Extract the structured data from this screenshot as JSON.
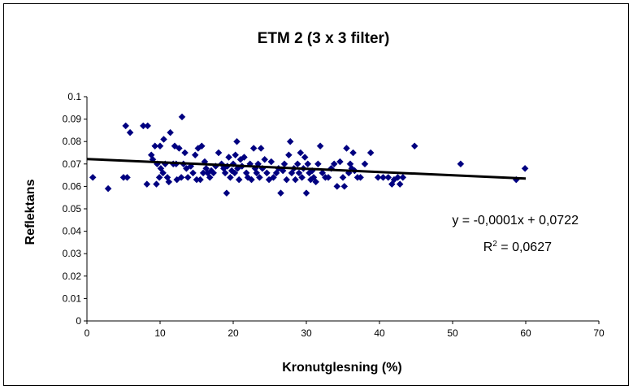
{
  "chart_data": {
    "type": "scatter",
    "title": "ETM 2 (3 x 3 filter)",
    "xlabel": "Kronutglesning (%)",
    "ylabel": "Reflektans",
    "xlim": [
      0,
      70
    ],
    "ylim": [
      0,
      0.1
    ],
    "x_ticks": [
      "0",
      "10",
      "20",
      "30",
      "40",
      "50",
      "60",
      "70"
    ],
    "y_ticks": [
      "0",
      "0.01",
      "0.02",
      "0.03",
      "0.04",
      "0.05",
      "0.06",
      "0.07",
      "0.08",
      "0.09",
      "0.1"
    ],
    "grid": false,
    "legend": "none",
    "marker_color": "#000080",
    "trendline": {
      "equation": "y = -0,0001x + 0,0722",
      "r2_prefix": "R",
      "r2_sup": "2",
      "r2_value": " = 0,0627",
      "x_range": [
        0,
        60
      ],
      "y_start": 0.0722,
      "y_end": 0.0635,
      "color": "#000000"
    },
    "points": [
      [
        0.8,
        0.064
      ],
      [
        2.9,
        0.059
      ],
      [
        5.0,
        0.064
      ],
      [
        5.3,
        0.087
      ],
      [
        5.5,
        0.064
      ],
      [
        5.9,
        0.084
      ],
      [
        7.7,
        0.087
      ],
      [
        8.3,
        0.087
      ],
      [
        8.2,
        0.061
      ],
      [
        8.8,
        0.074
      ],
      [
        9.0,
        0.072
      ],
      [
        9.3,
        0.078
      ],
      [
        9.6,
        0.07
      ],
      [
        9.9,
        0.064
      ],
      [
        9.5,
        0.061
      ],
      [
        10.0,
        0.078
      ],
      [
        10.5,
        0.081
      ],
      [
        10.1,
        0.068
      ],
      [
        10.4,
        0.066
      ],
      [
        10.7,
        0.07
      ],
      [
        11.0,
        0.064
      ],
      [
        11.4,
        0.084
      ],
      [
        11.2,
        0.062
      ],
      [
        11.8,
        0.07
      ],
      [
        12.0,
        0.078
      ],
      [
        12.3,
        0.063
      ],
      [
        12.2,
        0.07
      ],
      [
        12.6,
        0.077
      ],
      [
        12.9,
        0.064
      ],
      [
        13.0,
        0.091
      ],
      [
        13.2,
        0.07
      ],
      [
        13.4,
        0.075
      ],
      [
        13.6,
        0.068
      ],
      [
        13.8,
        0.064
      ],
      [
        14.2,
        0.069
      ],
      [
        14.5,
        0.066
      ],
      [
        14.8,
        0.074
      ],
      [
        15.0,
        0.063
      ],
      [
        15.2,
        0.077
      ],
      [
        15.5,
        0.063
      ],
      [
        15.7,
        0.078
      ],
      [
        15.9,
        0.066
      ],
      [
        16.1,
        0.071
      ],
      [
        16.3,
        0.068
      ],
      [
        16.5,
        0.066
      ],
      [
        16.8,
        0.064
      ],
      [
        17.0,
        0.067
      ],
      [
        17.3,
        0.066
      ],
      [
        17.6,
        0.069
      ],
      [
        18.0,
        0.075
      ],
      [
        18.4,
        0.07
      ],
      [
        18.7,
        0.068
      ],
      [
        18.9,
        0.066
      ],
      [
        19.1,
        0.057
      ],
      [
        19.2,
        0.069
      ],
      [
        19.4,
        0.073
      ],
      [
        19.6,
        0.064
      ],
      [
        19.8,
        0.067
      ],
      [
        20.0,
        0.07
      ],
      [
        20.2,
        0.066
      ],
      [
        20.3,
        0.074
      ],
      [
        20.5,
        0.08
      ],
      [
        20.6,
        0.068
      ],
      [
        20.8,
        0.063
      ],
      [
        21.0,
        0.072
      ],
      [
        21.2,
        0.069
      ],
      [
        21.5,
        0.073
      ],
      [
        21.8,
        0.066
      ],
      [
        22.0,
        0.064
      ],
      [
        22.3,
        0.07
      ],
      [
        22.5,
        0.063
      ],
      [
        22.8,
        0.077
      ],
      [
        23.0,
        0.068
      ],
      [
        23.2,
        0.066
      ],
      [
        23.4,
        0.07
      ],
      [
        23.6,
        0.064
      ],
      [
        23.8,
        0.077
      ],
      [
        24.0,
        0.068
      ],
      [
        24.3,
        0.072
      ],
      [
        24.6,
        0.066
      ],
      [
        24.9,
        0.063
      ],
      [
        25.2,
        0.071
      ],
      [
        25.5,
        0.064
      ],
      [
        25.9,
        0.066
      ],
      [
        26.2,
        0.068
      ],
      [
        26.5,
        0.057
      ],
      [
        26.8,
        0.067
      ],
      [
        27.0,
        0.07
      ],
      [
        27.3,
        0.063
      ],
      [
        27.6,
        0.074
      ],
      [
        27.8,
        0.08
      ],
      [
        28.0,
        0.066
      ],
      [
        28.3,
        0.068
      ],
      [
        28.5,
        0.063
      ],
      [
        28.8,
        0.07
      ],
      [
        29.0,
        0.066
      ],
      [
        29.2,
        0.075
      ],
      [
        29.4,
        0.064
      ],
      [
        29.6,
        0.068
      ],
      [
        29.8,
        0.073
      ],
      [
        30.0,
        0.057
      ],
      [
        30.2,
        0.07
      ],
      [
        30.4,
        0.066
      ],
      [
        30.6,
        0.063
      ],
      [
        30.8,
        0.067
      ],
      [
        31.0,
        0.064
      ],
      [
        31.3,
        0.062
      ],
      [
        31.6,
        0.07
      ],
      [
        31.9,
        0.078
      ],
      [
        32.2,
        0.066
      ],
      [
        32.6,
        0.064
      ],
      [
        33.0,
        0.064
      ],
      [
        33.4,
        0.068
      ],
      [
        33.8,
        0.07
      ],
      [
        34.2,
        0.06
      ],
      [
        34.6,
        0.071
      ],
      [
        35.0,
        0.064
      ],
      [
        35.2,
        0.06
      ],
      [
        35.5,
        0.077
      ],
      [
        35.8,
        0.066
      ],
      [
        36.0,
        0.07
      ],
      [
        36.2,
        0.068
      ],
      [
        36.4,
        0.075
      ],
      [
        36.6,
        0.067
      ],
      [
        37.0,
        0.064
      ],
      [
        37.4,
        0.064
      ],
      [
        38.0,
        0.07
      ],
      [
        38.8,
        0.075
      ],
      [
        39.8,
        0.064
      ],
      [
        40.5,
        0.064
      ],
      [
        41.2,
        0.064
      ],
      [
        41.7,
        0.061
      ],
      [
        42.0,
        0.063
      ],
      [
        42.5,
        0.064
      ],
      [
        42.8,
        0.061
      ],
      [
        43.2,
        0.064
      ],
      [
        44.8,
        0.078
      ],
      [
        51.1,
        0.07
      ],
      [
        58.7,
        0.063
      ],
      [
        59.9,
        0.068
      ]
    ]
  }
}
